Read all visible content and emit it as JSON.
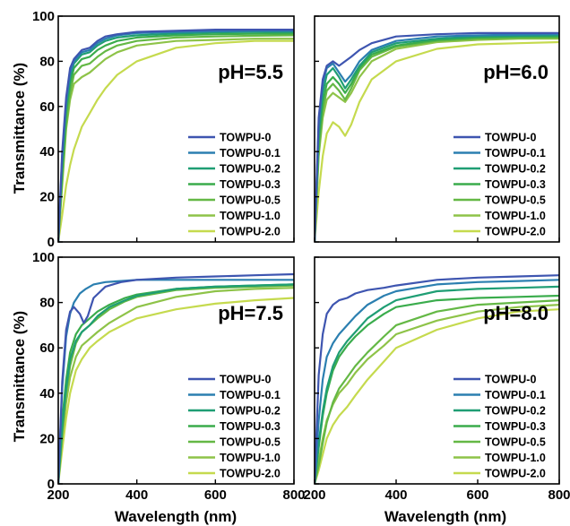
{
  "figure": {
    "xlabel": "Wavelength (nm)",
    "ylabel": "Transmittance (%)"
  },
  "chart_data": [
    {
      "type": "line",
      "title": "pH=5.5",
      "xlabel": "",
      "ylabel": "Transmittance (%)",
      "xlim": [
        200,
        800
      ],
      "ylim": [
        0,
        100
      ],
      "xticks": [
        200,
        400,
        600,
        800
      ],
      "yticks": [
        0,
        20,
        40,
        60,
        80,
        100
      ],
      "legend_position": "bottom-right",
      "series": [
        {
          "name": "TOWPU-0",
          "color": "#3e55b0",
          "x": [
            200,
            210,
            220,
            230,
            240,
            260,
            280,
            300,
            320,
            350,
            400,
            500,
            600,
            700,
            800
          ],
          "y": [
            0,
            40,
            64,
            77,
            81,
            85,
            86,
            89,
            91,
            92,
            93,
            93.5,
            94,
            94,
            94
          ]
        },
        {
          "name": "TOWPU-0.1",
          "color": "#2b7fb0",
          "x": [
            200,
            210,
            220,
            230,
            240,
            260,
            280,
            300,
            320,
            350,
            400,
            500,
            600,
            700,
            800
          ],
          "y": [
            0,
            38,
            62,
            75,
            80,
            84,
            85,
            88,
            90,
            91.5,
            92.5,
            93,
            93.3,
            93.5,
            93.5
          ]
        },
        {
          "name": "TOWPU-0.2",
          "color": "#1f9e74",
          "x": [
            200,
            210,
            220,
            230,
            240,
            260,
            280,
            300,
            320,
            350,
            400,
            500,
            600,
            700,
            800
          ],
          "y": [
            0,
            35,
            60,
            73,
            79,
            83,
            84,
            87,
            89,
            90.5,
            91.5,
            92.3,
            92.8,
            93,
            93
          ]
        },
        {
          "name": "TOWPU-0.3",
          "color": "#3aac4c",
          "x": [
            200,
            210,
            220,
            230,
            240,
            260,
            280,
            300,
            320,
            350,
            400,
            500,
            600,
            700,
            800
          ],
          "y": [
            0,
            32,
            57,
            70,
            77,
            81,
            82,
            85,
            87,
            89,
            90.5,
            91.5,
            92,
            92.2,
            92.3
          ]
        },
        {
          "name": "TOWPU-0.5",
          "color": "#64b845",
          "x": [
            200,
            210,
            220,
            230,
            240,
            260,
            280,
            300,
            320,
            350,
            400,
            500,
            600,
            700,
            800
          ],
          "y": [
            0,
            28,
            52,
            66,
            74,
            78,
            79,
            82,
            84.5,
            87,
            89,
            90.5,
            91,
            91.3,
            91.5
          ]
        },
        {
          "name": "TOWPU-1.0",
          "color": "#8ec348",
          "x": [
            200,
            210,
            220,
            230,
            240,
            260,
            280,
            300,
            320,
            350,
            400,
            500,
            600,
            700,
            800
          ],
          "y": [
            0,
            25,
            50,
            63,
            70,
            73,
            75,
            78,
            81,
            84,
            87,
            89,
            89.5,
            90,
            90
          ]
        },
        {
          "name": "TOWPU-2.0",
          "color": "#c5da4e",
          "x": [
            200,
            210,
            220,
            230,
            240,
            260,
            280,
            300,
            320,
            350,
            400,
            500,
            600,
            700,
            800
          ],
          "y": [
            0,
            12,
            25,
            34,
            41,
            51,
            57,
            63,
            68,
            74,
            80,
            86,
            88,
            89,
            89
          ]
        }
      ]
    },
    {
      "type": "line",
      "title": "pH=6.0",
      "xlabel": "",
      "ylabel": "",
      "xlim": [
        200,
        800
      ],
      "ylim": [
        0,
        100
      ],
      "xticks": [
        200,
        400,
        600,
        800
      ],
      "yticks": [
        0,
        20,
        40,
        60,
        80,
        100
      ],
      "legend_position": "bottom-right",
      "series": [
        {
          "name": "TOWPU-0",
          "color": "#3e55b0",
          "x": [
            200,
            210,
            220,
            230,
            245,
            260,
            275,
            290,
            310,
            340,
            400,
            500,
            600,
            700,
            800
          ],
          "y": [
            0,
            55,
            72,
            78,
            80,
            78,
            80,
            82,
            85,
            88,
            91,
            92,
            92.5,
            92.5,
            92.5
          ]
        },
        {
          "name": "TOWPU-0.1",
          "color": "#2b7fb0",
          "x": [
            200,
            210,
            220,
            230,
            245,
            260,
            275,
            290,
            310,
            340,
            400,
            500,
            600,
            700,
            800
          ],
          "y": [
            0,
            52,
            70,
            77,
            79,
            75,
            71,
            74,
            80,
            85,
            89,
            91,
            91.5,
            91.8,
            92
          ]
        },
        {
          "name": "TOWPU-0.2",
          "color": "#1f9e74",
          "x": [
            200,
            210,
            220,
            230,
            245,
            260,
            275,
            290,
            310,
            340,
            400,
            500,
            600,
            700,
            800
          ],
          "y": [
            0,
            48,
            66,
            74,
            77,
            73,
            68,
            72,
            78,
            84,
            88,
            90,
            91,
            91.2,
            91.5
          ]
        },
        {
          "name": "TOWPU-0.3",
          "color": "#3aac4c",
          "x": [
            200,
            210,
            220,
            230,
            245,
            260,
            275,
            290,
            310,
            340,
            400,
            500,
            600,
            700,
            800
          ],
          "y": [
            0,
            45,
            62,
            70,
            73,
            70,
            66,
            70,
            77,
            83,
            87,
            89.5,
            90.5,
            91,
            91
          ]
        },
        {
          "name": "TOWPU-0.5",
          "color": "#64b845",
          "x": [
            200,
            210,
            220,
            230,
            245,
            260,
            275,
            290,
            310,
            340,
            400,
            500,
            600,
            700,
            800
          ],
          "y": [
            0,
            40,
            58,
            67,
            70,
            67,
            63,
            68,
            76,
            82,
            86.5,
            89,
            90,
            90.3,
            90.5
          ]
        },
        {
          "name": "TOWPU-1.0",
          "color": "#8ec348",
          "x": [
            200,
            210,
            220,
            230,
            245,
            260,
            275,
            290,
            310,
            340,
            400,
            500,
            600,
            700,
            800
          ],
          "y": [
            0,
            38,
            55,
            63,
            66,
            64,
            62,
            66,
            73,
            80,
            85.5,
            88.5,
            89.5,
            90,
            90
          ]
        },
        {
          "name": "TOWPU-2.0",
          "color": "#c5da4e",
          "x": [
            200,
            210,
            220,
            230,
            245,
            260,
            275,
            290,
            310,
            340,
            400,
            500,
            600,
            700,
            800
          ],
          "y": [
            0,
            22,
            38,
            48,
            53,
            51,
            47,
            52,
            62,
            72,
            80,
            85.5,
            87.5,
            88,
            88.5
          ]
        }
      ]
    },
    {
      "type": "line",
      "title": "pH=7.5",
      "xlabel": "Wavelength (nm)",
      "ylabel": "Transmittance (%)",
      "xlim": [
        200,
        800
      ],
      "ylim": [
        0,
        100
      ],
      "xticks": [
        200,
        400,
        600,
        800
      ],
      "yticks": [
        0,
        20,
        40,
        60,
        80,
        100
      ],
      "legend_position": "bottom-right",
      "series": [
        {
          "name": "TOWPU-0",
          "color": "#3e55b0",
          "x": [
            200,
            210,
            220,
            230,
            240,
            255,
            265,
            275,
            290,
            320,
            360,
            400,
            500,
            600,
            700,
            800
          ],
          "y": [
            0,
            45,
            68,
            76,
            78,
            75,
            71,
            74,
            82,
            87,
            89,
            90,
            91,
            91.5,
            92,
            92.5
          ]
        },
        {
          "name": "TOWPU-0.1",
          "color": "#2b7fb0",
          "x": [
            200,
            210,
            220,
            230,
            240,
            255,
            270,
            290,
            320,
            360,
            400,
            500,
            600,
            700,
            800
          ],
          "y": [
            0,
            42,
            65,
            75,
            80,
            84,
            86,
            88,
            89,
            89.5,
            90,
            90,
            90,
            90,
            90
          ]
        },
        {
          "name": "TOWPU-0.2",
          "color": "#1f9e74",
          "x": [
            200,
            210,
            220,
            230,
            245,
            260,
            280,
            300,
            330,
            370,
            400,
            500,
            600,
            700,
            800
          ],
          "y": [
            0,
            25,
            42,
            55,
            63,
            67,
            70,
            74,
            78,
            81,
            83,
            86,
            87,
            87.5,
            88
          ]
        },
        {
          "name": "TOWPU-0.3",
          "color": "#3aac4c",
          "x": [
            200,
            210,
            220,
            230,
            245,
            260,
            280,
            300,
            330,
            370,
            400,
            500,
            600,
            700,
            800
          ],
          "y": [
            0,
            28,
            46,
            58,
            66,
            70,
            73,
            76,
            79,
            82,
            83.5,
            86,
            87,
            87.5,
            88
          ]
        },
        {
          "name": "TOWPU-0.5",
          "color": "#64b845",
          "x": [
            200,
            210,
            220,
            230,
            245,
            260,
            280,
            300,
            330,
            370,
            400,
            500,
            600,
            700,
            800
          ],
          "y": [
            0,
            22,
            40,
            52,
            62,
            67,
            70,
            73,
            77,
            80.5,
            82.5,
            85.5,
            86.5,
            87,
            87.5
          ]
        },
        {
          "name": "TOWPU-1.0",
          "color": "#8ec348",
          "x": [
            200,
            210,
            220,
            230,
            245,
            260,
            280,
            300,
            330,
            370,
            400,
            500,
            600,
            700,
            800
          ],
          "y": [
            0,
            20,
            36,
            47,
            56,
            61,
            64,
            67,
            71,
            75,
            78,
            82.5,
            85,
            86,
            86.5
          ]
        },
        {
          "name": "TOWPU-2.0",
          "color": "#c5da4e",
          "x": [
            200,
            210,
            220,
            230,
            245,
            260,
            280,
            300,
            330,
            370,
            400,
            500,
            600,
            700,
            800
          ],
          "y": [
            0,
            15,
            29,
            40,
            50,
            55,
            60,
            63,
            67,
            70.5,
            73,
            77,
            79.5,
            81,
            82
          ]
        }
      ]
    },
    {
      "type": "line",
      "title": "pH=8.0",
      "xlabel": "Wavelength (nm)",
      "ylabel": "",
      "xlim": [
        200,
        800
      ],
      "ylim": [
        0,
        100
      ],
      "xticks": [
        200,
        400,
        600,
        800
      ],
      "yticks": [
        0,
        20,
        40,
        60,
        80,
        100
      ],
      "legend_position": "bottom-right",
      "series": [
        {
          "name": "TOWPU-0",
          "color": "#3e55b0",
          "x": [
            200,
            210,
            220,
            230,
            245,
            260,
            280,
            300,
            330,
            370,
            400,
            500,
            600,
            700,
            800
          ],
          "y": [
            0,
            48,
            66,
            75,
            79,
            81,
            82,
            84,
            85.5,
            86.5,
            87.5,
            90,
            91,
            91.5,
            92
          ]
        },
        {
          "name": "TOWPU-0.1",
          "color": "#2b7fb0",
          "x": [
            200,
            210,
            220,
            230,
            245,
            260,
            280,
            300,
            330,
            370,
            400,
            500,
            600,
            700,
            800
          ],
          "y": [
            0,
            28,
            46,
            56,
            62,
            66,
            70,
            74,
            79,
            83,
            85,
            88,
            89,
            89.5,
            90
          ]
        },
        {
          "name": "TOWPU-0.2",
          "color": "#1f9e74",
          "x": [
            200,
            210,
            220,
            230,
            245,
            260,
            280,
            300,
            330,
            370,
            400,
            500,
            600,
            700,
            800
          ],
          "y": [
            0,
            18,
            32,
            42,
            52,
            58,
            63,
            67,
            73,
            78,
            81,
            85,
            86,
            86.5,
            87
          ]
        },
        {
          "name": "TOWPU-0.3",
          "color": "#3aac4c",
          "x": [
            200,
            210,
            220,
            230,
            245,
            260,
            280,
            300,
            330,
            370,
            400,
            500,
            600,
            700,
            800
          ],
          "y": [
            0,
            16,
            30,
            40,
            50,
            56,
            61,
            65,
            70,
            75,
            78,
            81,
            82,
            82.5,
            83
          ]
        },
        {
          "name": "TOWPU-0.5",
          "color": "#64b845",
          "x": [
            200,
            210,
            220,
            230,
            245,
            260,
            280,
            300,
            330,
            370,
            400,
            500,
            600,
            700,
            800
          ],
          "y": [
            0,
            8,
            18,
            27,
            36,
            42,
            47,
            52,
            58,
            65,
            70,
            76,
            79,
            80,
            81
          ]
        },
        {
          "name": "TOWPU-1.0",
          "color": "#8ec348",
          "x": [
            200,
            210,
            220,
            230,
            245,
            260,
            280,
            300,
            330,
            370,
            400,
            500,
            600,
            700,
            800
          ],
          "y": [
            0,
            10,
            20,
            28,
            35,
            40,
            44,
            49,
            55,
            61,
            66,
            72,
            76,
            78,
            79
          ]
        },
        {
          "name": "TOWPU-2.0",
          "color": "#c5da4e",
          "x": [
            200,
            210,
            220,
            230,
            245,
            260,
            280,
            300,
            330,
            370,
            400,
            500,
            600,
            700,
            800
          ],
          "y": [
            0,
            6,
            13,
            20,
            26,
            30,
            34,
            39,
            46,
            54,
            60,
            68,
            73,
            76,
            77
          ]
        }
      ]
    }
  ]
}
